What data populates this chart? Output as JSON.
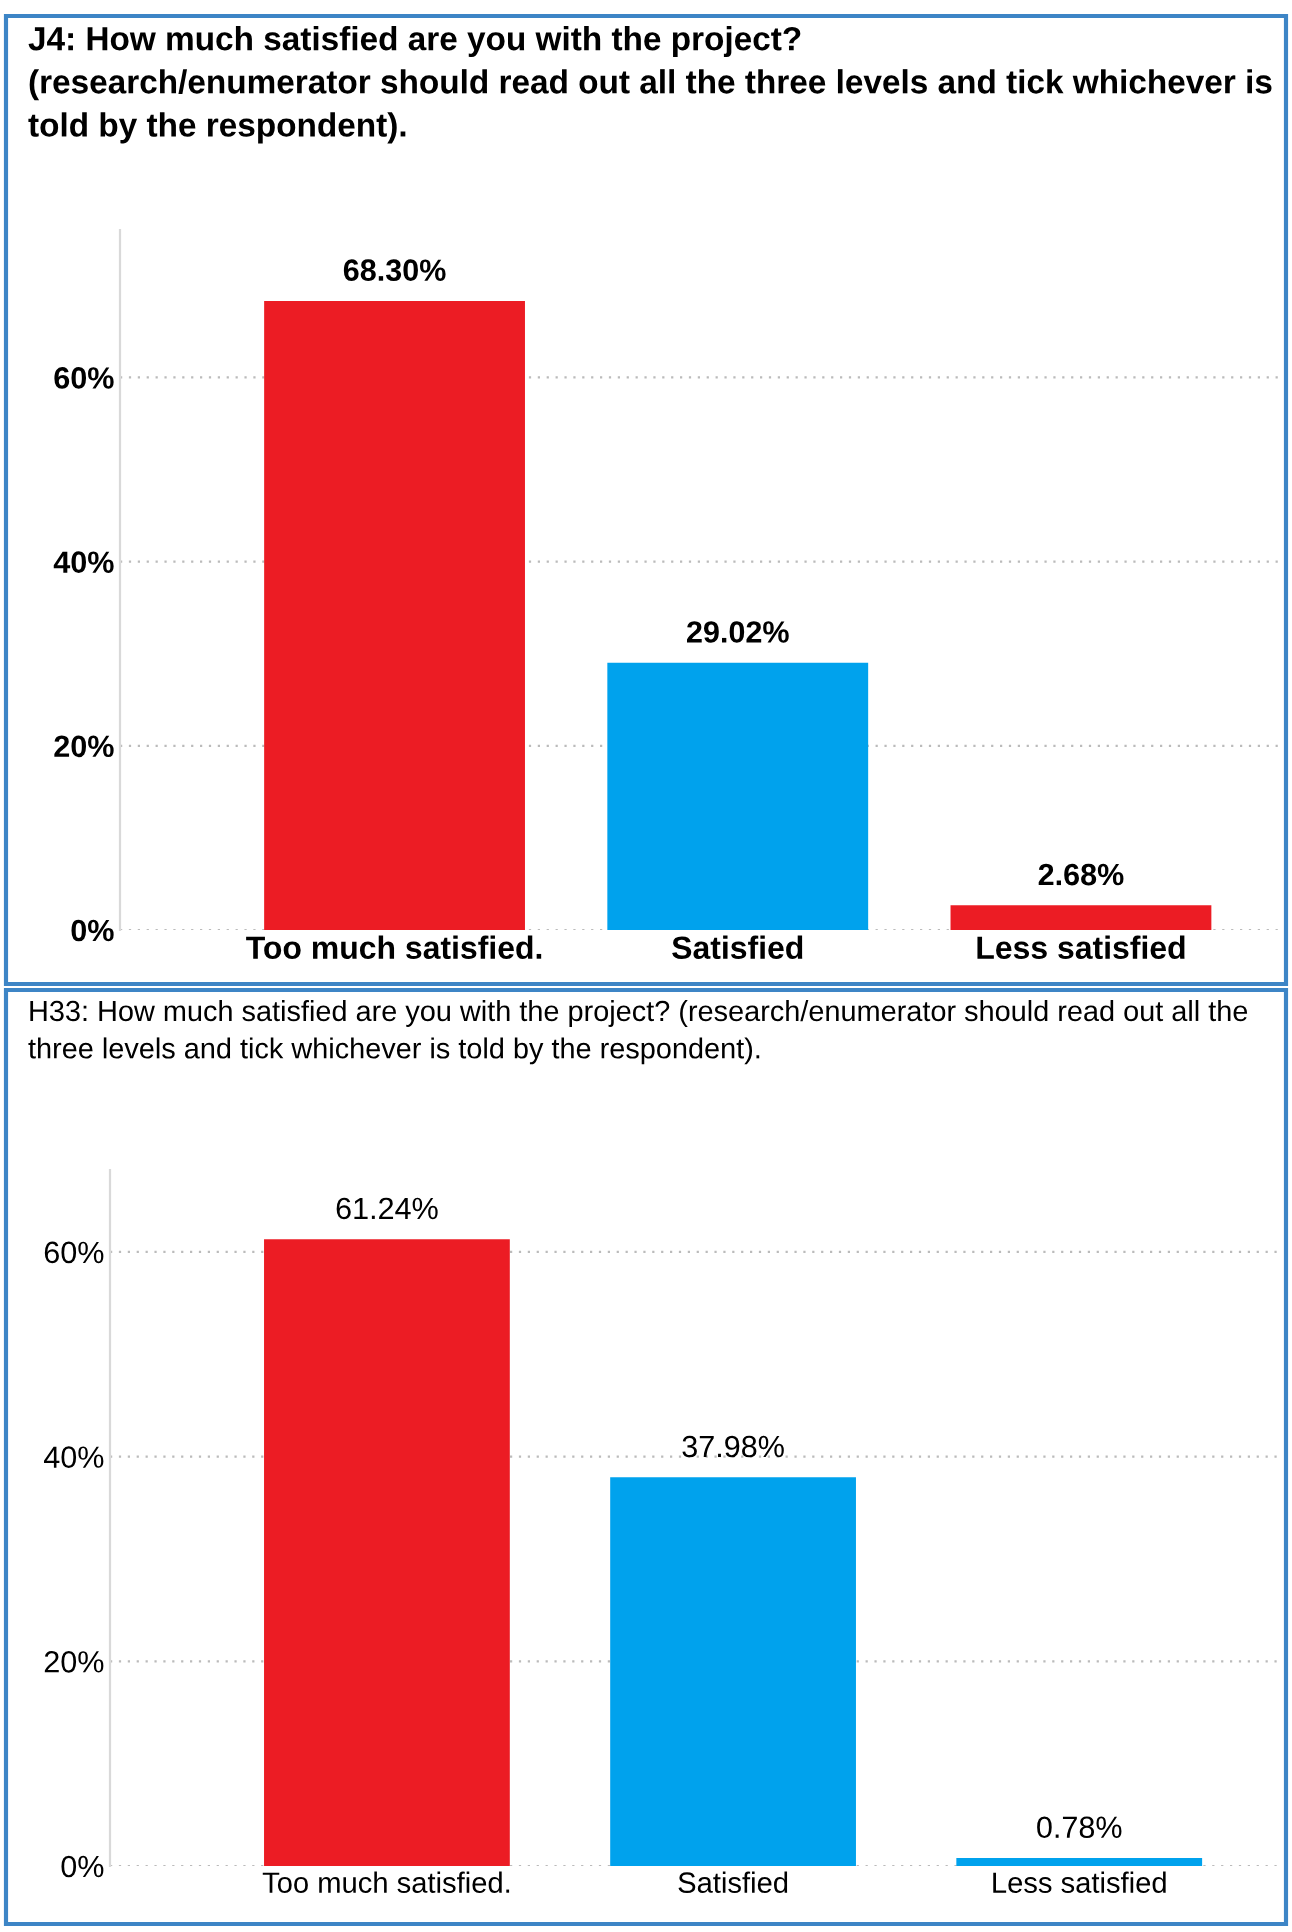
{
  "chart_data": [
    {
      "type": "bar",
      "title": "J4: How much satisfied are you with the project?\n(research/enumerator should read out all the three levels and tick whichever is told by the respondent).",
      "categories": [
        "Too much satisfied.",
        "Satisfied",
        "Less satisfied"
      ],
      "values": [
        68.3,
        29.02,
        2.68
      ],
      "colors": [
        "#ec1c24",
        "#00a2ed",
        "#ec1c24"
      ],
      "value_labels": [
        "68.30%",
        "29.02%",
        "2.68%"
      ],
      "ylim": [
        0,
        76
      ],
      "yticks": [
        {
          "value": 0,
          "label": "0%"
        },
        {
          "value": 20,
          "label": "20%"
        },
        {
          "value": 40,
          "label": "40%"
        },
        {
          "value": 60,
          "label": "60%"
        }
      ],
      "grid": "y"
    },
    {
      "type": "bar",
      "title": "H33: How much satisfied are you with the project? (research/enumerator should read out all the three levels and tick whichever is told by the respondent).",
      "categories": [
        "Too much satisfied.",
        "Satisfied",
        "Less satisfied"
      ],
      "values": [
        61.24,
        37.98,
        0.78
      ],
      "colors": [
        "#ec1c24",
        "#00a2ed",
        "#00a2ed"
      ],
      "value_labels": [
        "61.24%",
        "37.98%",
        "0.78%"
      ],
      "ylim": [
        0,
        68
      ],
      "yticks": [
        {
          "value": 0,
          "label": "0%"
        },
        {
          "value": 20,
          "label": "20%"
        },
        {
          "value": 40,
          "label": "40%"
        },
        {
          "value": 60,
          "label": "60%"
        }
      ],
      "grid": "y"
    }
  ]
}
